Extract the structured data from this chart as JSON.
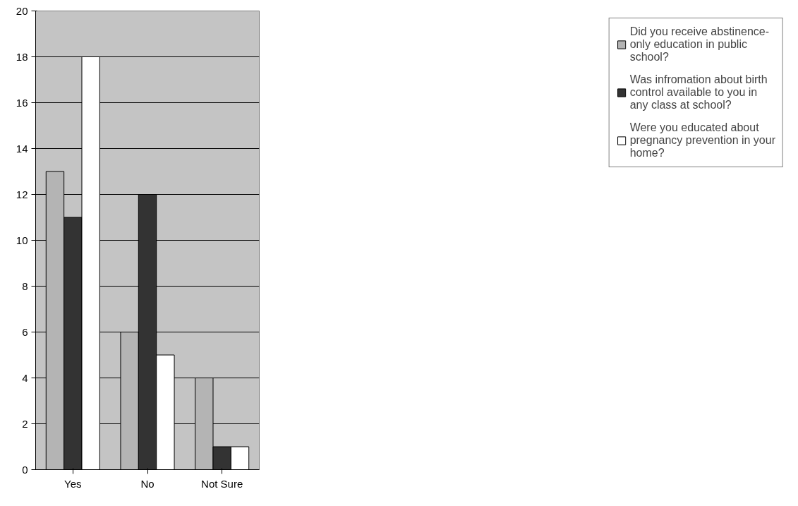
{
  "chart_data": {
    "type": "bar",
    "categories": [
      "Yes",
      "No",
      "Not Sure"
    ],
    "series": [
      {
        "name": "Did you receive abstinence-only education in public school?",
        "color": "#b4b4b4",
        "values": [
          13,
          6,
          4
        ]
      },
      {
        "name": "Was infromation about birth control available to you in any class at school?",
        "color": "#333333",
        "values": [
          11,
          12,
          1
        ]
      },
      {
        "name": "Were you educated about pregnancy prevention in your home?",
        "color": "#ffffff",
        "values": [
          18,
          5,
          1
        ]
      }
    ],
    "ylim": [
      0,
      20
    ],
    "yticks": [
      0,
      2,
      4,
      6,
      8,
      10,
      12,
      14,
      16,
      18,
      20
    ],
    "grid": "y",
    "legend": "right"
  }
}
